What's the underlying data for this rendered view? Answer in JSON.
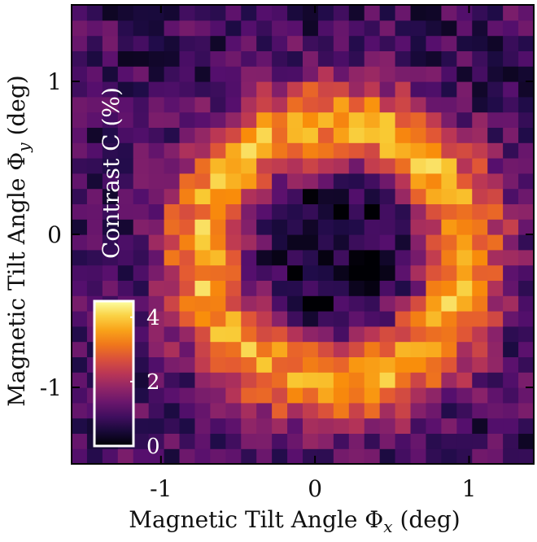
{
  "chart_data": {
    "type": "heatmap",
    "title": "",
    "xlabel_text": "Magnetic Tilt Angle Φ",
    "xlabel_sub": "x",
    "xlabel_unit": " (deg)",
    "ylabel_text": "Magnetic Tilt Angle Φ",
    "ylabel_sub": "y",
    "ylabel_unit": " (deg)",
    "xlim": [
      -1.58,
      1.42
    ],
    "ylim": [
      -1.5,
      1.5
    ],
    "x_ticks": [
      {
        "value": -1,
        "label": "-1"
      },
      {
        "value": 0,
        "label": "0"
      },
      {
        "value": 1,
        "label": "1"
      }
    ],
    "y_ticks": [
      {
        "value": -1,
        "label": "-1"
      },
      {
        "value": 0,
        "label": "0"
      },
      {
        "value": 1,
        "label": "1"
      }
    ],
    "grid": false,
    "colormap": "inferno",
    "colorbar": {
      "label": "Contrast C (%)",
      "range": [
        0,
        4.5
      ],
      "ticks": [
        {
          "value": 0,
          "label": "0"
        },
        {
          "value": 2,
          "label": "2"
        },
        {
          "value": 4,
          "label": "4"
        }
      ],
      "placement": "inside-bottom-left"
    },
    "cells": {
      "nx": 30,
      "ny": 30,
      "x_center": 0.12,
      "y_center": -0.12
    },
    "pattern": {
      "description_free_model": "ring",
      "ring_radius_deg": 0.85,
      "ring_width_deg": 0.3,
      "peak_contrast": 3.6,
      "center_contrast": 0.3,
      "background_contrast": 0.9
    }
  }
}
